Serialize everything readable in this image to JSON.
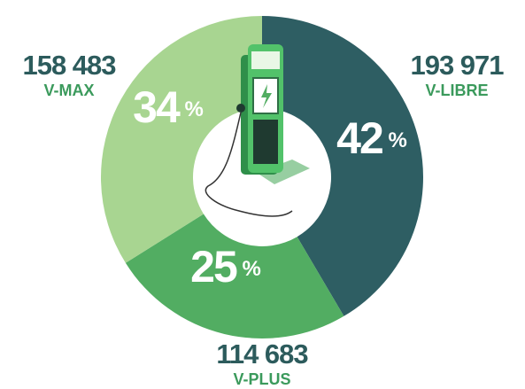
{
  "chart_data": {
    "type": "pie",
    "categories": [
      "V-LIBRE",
      "V-PLUS",
      "V-MAX"
    ],
    "values": [
      193971,
      114683,
      158483
    ],
    "value_labels": [
      "193 971",
      "114 683",
      "158 483"
    ],
    "percentages": [
      42,
      25,
      34
    ],
    "percentage_labels": [
      "42 %",
      "25 %",
      "34 %"
    ],
    "colors": [
      "#2e5e63",
      "#52ad62",
      "#a8d591"
    ]
  }
}
